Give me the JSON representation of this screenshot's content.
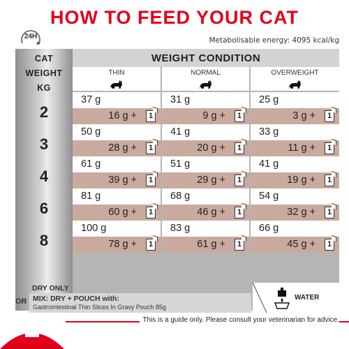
{
  "title": "HOW TO FEED YOUR CAT",
  "badge": "24H",
  "energy": "Metabolisable energy: 4095 kcal/kg",
  "cat_weight_header": [
    "CAT",
    "WEIGHT",
    "KG"
  ],
  "condition_header": "WEIGHT CONDITION",
  "conditions": [
    "THIN",
    "NORMAL",
    "OVERWEIGHT"
  ],
  "pouch_count": "1",
  "rows": [
    {
      "weight": "2",
      "cells": [
        {
          "dry": "37 g",
          "mix": "16 g",
          "plus": "+"
        },
        {
          "dry": "31 g",
          "mix": "9 g",
          "plus": "+"
        },
        {
          "dry": "25 g",
          "mix": "3 g",
          "plus": "+"
        }
      ]
    },
    {
      "weight": "3",
      "cells": [
        {
          "dry": "50 g",
          "mix": "28 g",
          "plus": "+"
        },
        {
          "dry": "41 g",
          "mix": "20 g",
          "plus": "+"
        },
        {
          "dry": "33 g",
          "mix": "11 g",
          "plus": "+"
        }
      ]
    },
    {
      "weight": "4",
      "cells": [
        {
          "dry": "61 g",
          "mix": "39 g",
          "plus": "+"
        },
        {
          "dry": "51 g",
          "mix": "29 g",
          "plus": "+"
        },
        {
          "dry": "41 g",
          "mix": "19 g",
          "plus": "+"
        }
      ]
    },
    {
      "weight": "6",
      "cells": [
        {
          "dry": "81 g",
          "mix": "60 g",
          "plus": "+"
        },
        {
          "dry": "68 g",
          "mix": "46 g",
          "plus": "+"
        },
        {
          "dry": "54 g",
          "mix": "32 g",
          "plus": "+"
        }
      ]
    },
    {
      "weight": "8",
      "cells": [
        {
          "dry": "100 g",
          "mix": "78 g",
          "plus": "+"
        },
        {
          "dry": "83 g",
          "mix": "61 g",
          "plus": "+"
        },
        {
          "dry": "66 g",
          "mix": "45 g",
          "plus": "+"
        }
      ]
    }
  ],
  "footer": {
    "dry_only": "DRY ONLY",
    "or": "OR",
    "mix": "MIX: DRY + POUCH with:",
    "product": "Gastrointestinal Thin Slices In Gravy Pouch 85g",
    "water": "WATER"
  },
  "disclaimer": "This is a guide only. Please consult your veterinarian for advice.",
  "colors": {
    "brand_red": "#e1001a",
    "mix_row": "#c9aa9f",
    "header_grey": "#d3d3d3"
  },
  "icons": [
    "clock-icon",
    "cat-icon",
    "pouch-icon",
    "water-bowl-icon",
    "royal-canin-logo"
  ]
}
